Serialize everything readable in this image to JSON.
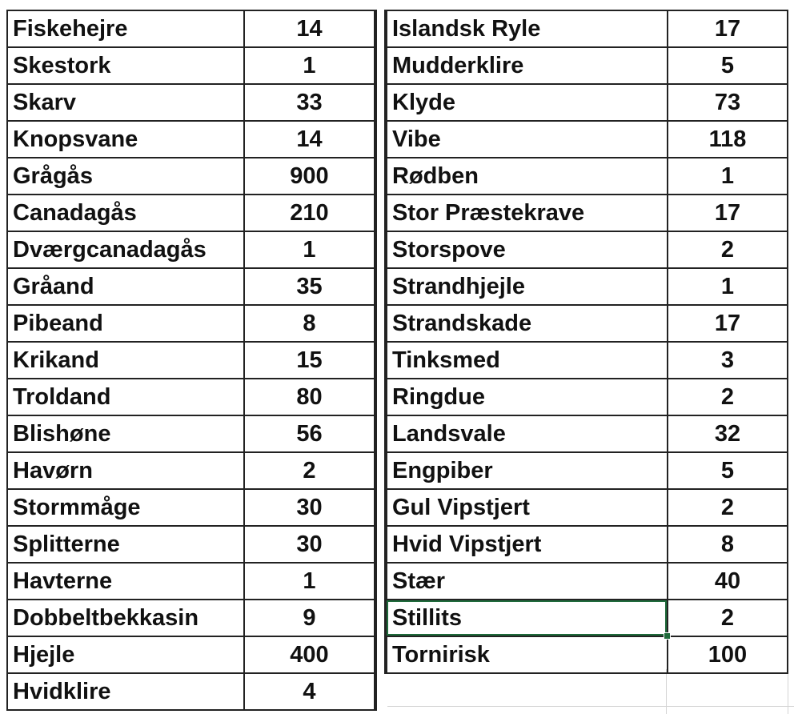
{
  "left_table": {
    "rows": [
      {
        "name": "Fiskehejre",
        "count": "14"
      },
      {
        "name": "Skestork",
        "count": "1"
      },
      {
        "name": "Skarv",
        "count": "33"
      },
      {
        "name": "Knopsvane",
        "count": "14"
      },
      {
        "name": "Grågås",
        "count": "900"
      },
      {
        "name": "Canadagås",
        "count": "210"
      },
      {
        "name": "Dværgcanadagås",
        "count": "1"
      },
      {
        "name": "Gråand",
        "count": "35"
      },
      {
        "name": "Pibeand",
        "count": "8"
      },
      {
        "name": "Krikand",
        "count": "15"
      },
      {
        "name": "Troldand",
        "count": "80"
      },
      {
        "name": "Blishøne",
        "count": "56"
      },
      {
        "name": "Havørn",
        "count": "2"
      },
      {
        "name": "Stormmåge",
        "count": "30"
      },
      {
        "name": "Splitterne",
        "count": "30"
      },
      {
        "name": "Havterne",
        "count": "1"
      },
      {
        "name": "Dobbeltbekkasin",
        "count": "9"
      },
      {
        "name": "Hjejle",
        "count": "400"
      },
      {
        "name": "Hvidklire",
        "count": "4"
      }
    ]
  },
  "right_table": {
    "rows": [
      {
        "name": "Islandsk Ryle",
        "count": "17"
      },
      {
        "name": "Mudderklire",
        "count": "5"
      },
      {
        "name": "Klyde",
        "count": "73"
      },
      {
        "name": "Vibe",
        "count": "118"
      },
      {
        "name": "Rødben",
        "count": "1"
      },
      {
        "name": "Stor Præstekrave",
        "count": "17"
      },
      {
        "name": "Storspove",
        "count": "2"
      },
      {
        "name": "Strandhjejle",
        "count": "1"
      },
      {
        "name": "Strandskade",
        "count": "17"
      },
      {
        "name": "Tinksmed",
        "count": "3"
      },
      {
        "name": "Ringdue",
        "count": "2"
      },
      {
        "name": "Landsvale",
        "count": "32"
      },
      {
        "name": "Engpiber",
        "count": "5"
      },
      {
        "name": "Gul Vipstjert",
        "count": "2"
      },
      {
        "name": "Hvid Vipstjert",
        "count": "8"
      },
      {
        "name": "Stær",
        "count": "40"
      },
      {
        "name": "Stillits",
        "count": "2"
      },
      {
        "name": "Tornirisk",
        "count": "100"
      }
    ]
  },
  "selection": {
    "table": "right_table",
    "row": 16,
    "column": "name"
  },
  "colors": {
    "border": "#222222",
    "gridline": "#d4d4d4",
    "selection": "#1f6b3b"
  }
}
